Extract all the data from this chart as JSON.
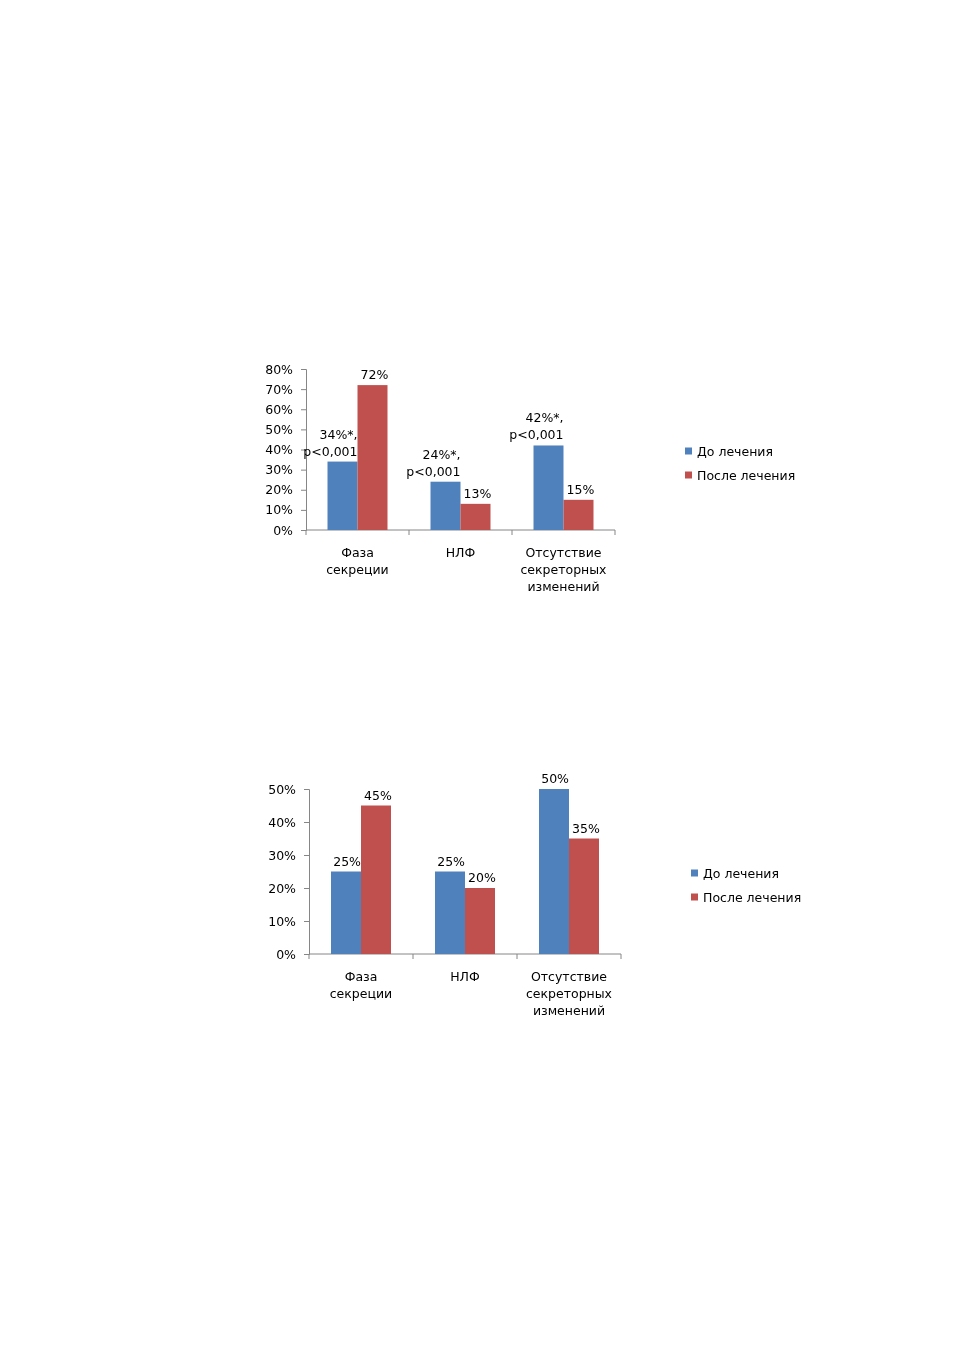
{
  "chart_data": [
    {
      "type": "bar",
      "categories": [
        "Фаза секреции",
        "НЛФ",
        "Отсутствие секреторных изменений"
      ],
      "series": [
        {
          "name": "До лечения",
          "color": "#4f81bd",
          "values": [
            34,
            24,
            42
          ],
          "value_labels": [
            "34%*, p<0,001",
            "24%*, p<0,001",
            "42%*, p<0,001"
          ]
        },
        {
          "name": "После лечения",
          "color": "#c0504d",
          "values": [
            72,
            13,
            15
          ],
          "value_labels": [
            "72%",
            "13%",
            "15%"
          ]
        }
      ],
      "ylim": [
        0,
        80
      ],
      "yticks": [
        {
          "value": 0,
          "label": "0%"
        },
        {
          "value": 10,
          "label": "10%"
        },
        {
          "value": 20,
          "label": "20%"
        },
        {
          "value": 30,
          "label": "30%"
        },
        {
          "value": 40,
          "label": "40%"
        },
        {
          "value": 50,
          "label": "50%"
        },
        {
          "value": 60,
          "label": "60%"
        },
        {
          "value": 70,
          "label": "70%"
        },
        {
          "value": 80,
          "label": "80%"
        }
      ],
      "grid": false,
      "legend": "right"
    },
    {
      "type": "bar",
      "categories": [
        "Фаза секреции",
        "НЛФ",
        "Отсутствие секреторных изменений"
      ],
      "series": [
        {
          "name": "До лечения",
          "color": "#4f81bd",
          "values": [
            25,
            25,
            50
          ],
          "value_labels": [
            "25%",
            "25%",
            "50%"
          ]
        },
        {
          "name": "После лечения",
          "color": "#c0504d",
          "values": [
            45,
            20,
            35
          ],
          "value_labels": [
            "45%",
            "20%",
            "35%"
          ]
        }
      ],
      "ylim": [
        0,
        50
      ],
      "yticks": [
        {
          "value": 0,
          "label": "0%"
        },
        {
          "value": 10,
          "label": "10%"
        },
        {
          "value": 20,
          "label": "20%"
        },
        {
          "value": 30,
          "label": "30%"
        },
        {
          "value": 40,
          "label": "40%"
        },
        {
          "value": 50,
          "label": "50%"
        }
      ],
      "grid": false,
      "legend": "right"
    }
  ]
}
